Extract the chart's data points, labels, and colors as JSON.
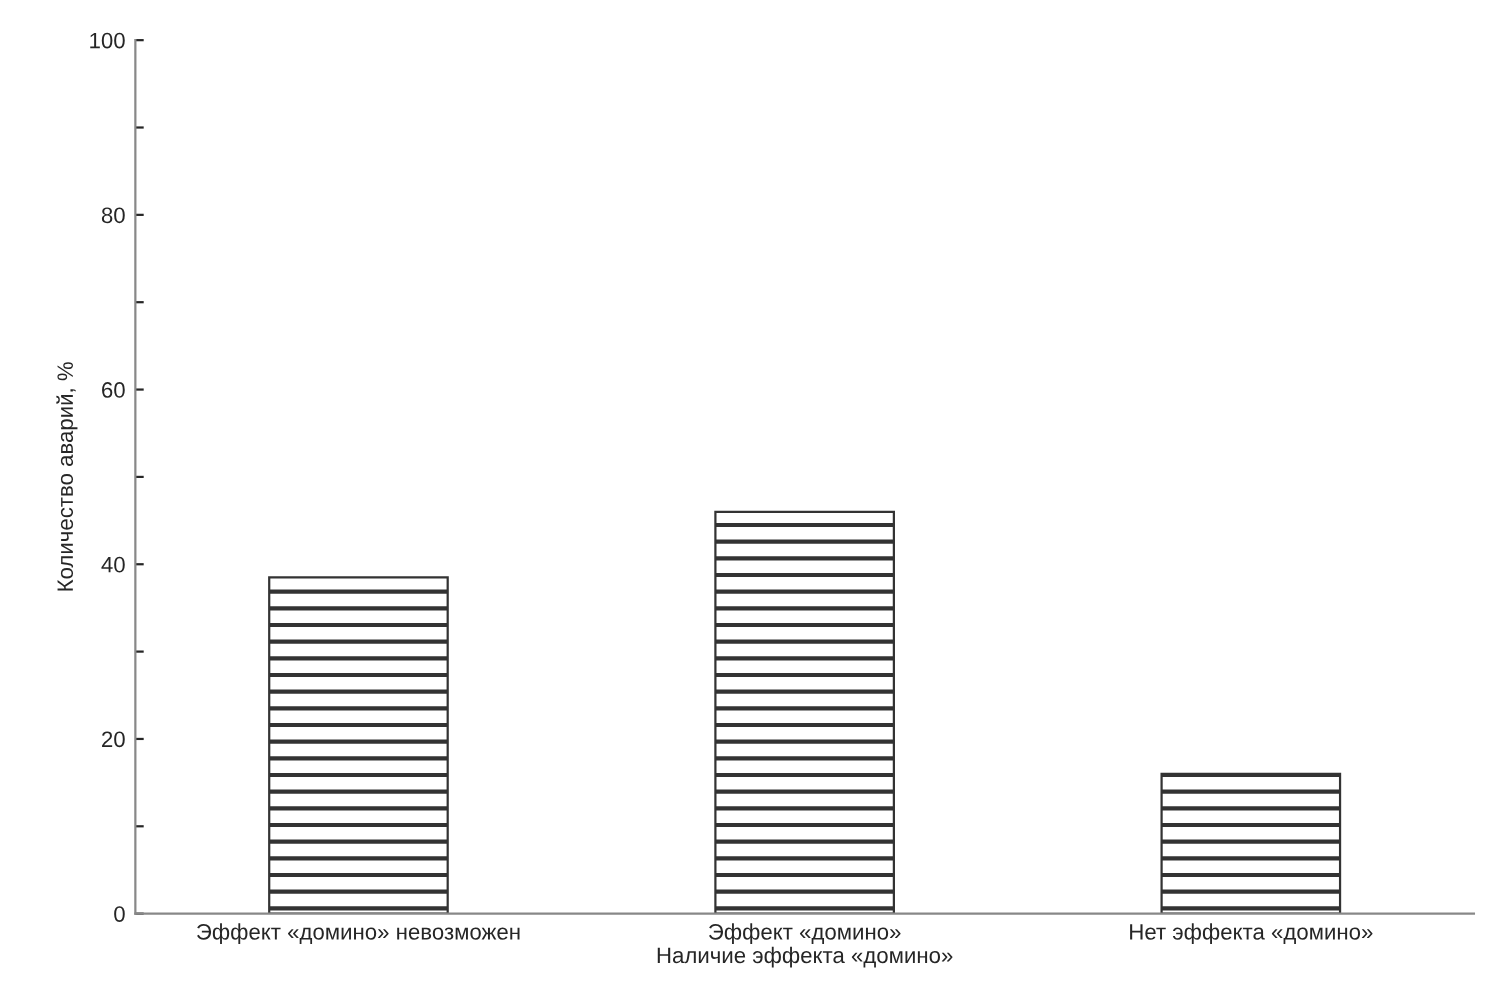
{
  "chart_data": {
    "type": "bar",
    "xlabel": "Наличие эффекта «домино»",
    "ylabel": "Количество аварий, %",
    "categories": [
      "Эффект «домино» невозможен",
      "Эффект «домино»",
      "Нет эффекта «домино»"
    ],
    "values": [
      38.5,
      46,
      16
    ],
    "color": "#333333",
    "ylim": [
      0,
      100
    ],
    "yticks": [
      0,
      {
        "value": 10,
        "label": null
      },
      20,
      {
        "value": 30,
        "label": null
      },
      40,
      {
        "value": 50,
        "label": null
      },
      60,
      {
        "value": 70,
        "label": null
      },
      80,
      {
        "value": 90,
        "label": null
      },
      100
    ],
    "grid": false,
    "legend": false
  }
}
